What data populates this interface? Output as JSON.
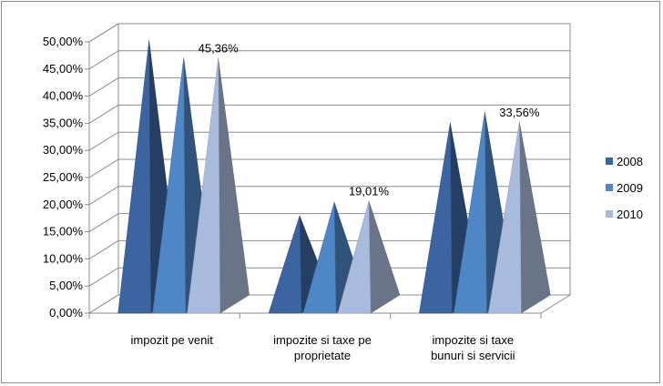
{
  "chart_data": {
    "type": "bar",
    "style": "3d-pyramid",
    "categories": [
      [
        "impozit pe venit"
      ],
      [
        "impozite si taxe pe",
        "proprietate"
      ],
      [
        "impozite si taxe",
        "bunuri si servicii"
      ]
    ],
    "series": [
      {
        "name": "2008",
        "values": [
          48.6,
          16.3,
          33.4
        ],
        "color": "#3c64a0"
      },
      {
        "name": "2009",
        "values": [
          45.4,
          18.8,
          35.4
        ],
        "color": "#4f86c6"
      },
      {
        "name": "2010",
        "values": [
          45.36,
          19.01,
          33.56
        ],
        "color": "#a9bbdc"
      }
    ],
    "data_labels": [
      {
        "category_index": 0,
        "series_index": 2,
        "text": "45,36%"
      },
      {
        "category_index": 1,
        "series_index": 2,
        "text": "19,01%"
      },
      {
        "category_index": 2,
        "series_index": 2,
        "text": "33,56%"
      }
    ],
    "y_ticks": [
      "0,00%",
      "5,00%",
      "10,00%",
      "15,00%",
      "20,00%",
      "25,00%",
      "30,00%",
      "35,00%",
      "40,00%",
      "45,00%",
      "50,00%"
    ],
    "ylim": [
      0,
      50
    ],
    "title": "",
    "xlabel": "",
    "ylabel": "",
    "grid": true,
    "legend_position": "right"
  }
}
